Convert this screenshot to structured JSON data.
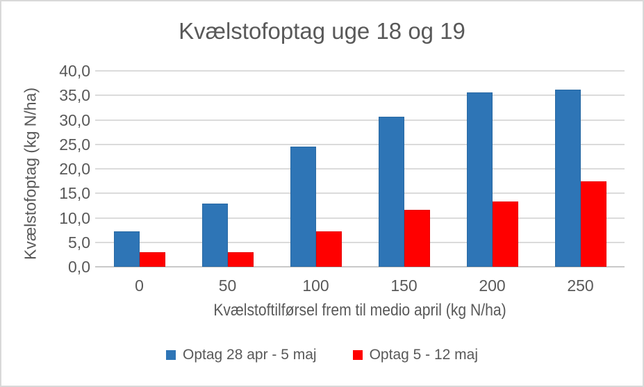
{
  "window": {
    "background_color": "#FFFFFF",
    "border_color": "#D9D9D9",
    "text_color": "#595959"
  },
  "chart_data": {
    "type": "bar",
    "title": "Kvælstofoptag uge 18 og 19",
    "xlabel": "Kvælstoftilførsel frem til medio april (kg N/ha)",
    "ylabel": "Kvælstofoptag (kg N/ha)",
    "categories": [
      "0",
      "50",
      "100",
      "150",
      "200",
      "250"
    ],
    "series": [
      {
        "name": "Optag 28 apr - 5 maj",
        "color": "#2E75B6",
        "values": [
          7.2,
          12.9,
          24.5,
          30.7,
          35.6,
          36.2
        ]
      },
      {
        "name": "Optag 5 - 12 maj",
        "color": "#FF0000",
        "values": [
          3.0,
          3.0,
          7.2,
          11.7,
          13.4,
          17.5
        ]
      }
    ],
    "ylim": [
      0,
      40
    ],
    "ytick_step": 5,
    "ytick_labels": [
      "0,0",
      "5,0",
      "10,0",
      "15,0",
      "20,0",
      "25,0",
      "30,0",
      "35,0",
      "40,0"
    ],
    "grid": true,
    "legend_position": "bottom",
    "gridline_color": "#DBDBDB",
    "axisline_color": "#C9C9C9"
  }
}
